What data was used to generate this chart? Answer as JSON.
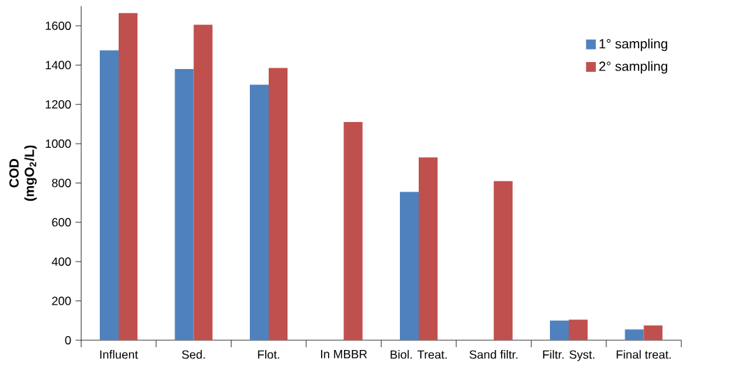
{
  "chart_data": {
    "type": "bar",
    "ylabel": "COD (mgO$_{2}$/L)",
    "categories": [
      "Influent",
      "Sed.",
      "Flot.",
      "In MBBR",
      "Biol. Treat.",
      "Sand filtr.",
      "Filtr. Syst.",
      "Final treat."
    ],
    "series": [
      {
        "name": "1° sampling",
        "color": "#4f81bd",
        "values": [
          1475,
          1380,
          1300,
          null,
          755,
          null,
          100,
          55
        ]
      },
      {
        "name": "2° sampling",
        "color": "#c0504d",
        "values": [
          1665,
          1605,
          1385,
          1110,
          930,
          810,
          105,
          75
        ]
      }
    ],
    "ylim": [
      0,
      1700
    ],
    "yticks": [
      0,
      200,
      400,
      600,
      800,
      1000,
      1200,
      1400,
      1600
    ],
    "legend": "top right"
  }
}
